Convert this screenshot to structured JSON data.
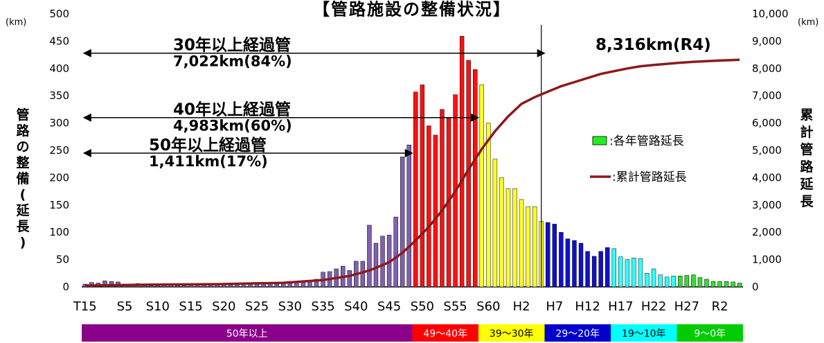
{
  "chart_data": {
    "type": "bar",
    "title": "【管路施設の整備状況】",
    "ylabel": "管路の整備(延長)",
    "y2label": "累計管路延長",
    "y_unit": "(km)",
    "y2_unit": "(km)",
    "ylim": [
      0,
      500
    ],
    "y2lim": [
      0,
      10000
    ],
    "yticks": [
      "0",
      "50",
      "100",
      "150",
      "200",
      "250",
      "300",
      "350",
      "400",
      "450",
      "500"
    ],
    "y2ticks": [
      "0",
      "1,000",
      "2,000",
      "3,000",
      "4,000",
      "5,000",
      "6,000",
      "7,000",
      "8,000",
      "9,000",
      "10,000"
    ],
    "x_tick_labels": [
      {
        "label": "T15",
        "index": 0
      },
      {
        "label": "S5",
        "index": 6
      },
      {
        "label": "S10",
        "index": 11
      },
      {
        "label": "S15",
        "index": 16
      },
      {
        "label": "S20",
        "index": 21
      },
      {
        "label": "S25",
        "index": 26
      },
      {
        "label": "S30",
        "index": 31
      },
      {
        "label": "S35",
        "index": 36
      },
      {
        "label": "S40",
        "index": 41
      },
      {
        "label": "S45",
        "index": 46
      },
      {
        "label": "S50",
        "index": 51
      },
      {
        "label": "S55",
        "index": 56
      },
      {
        "label": "S60",
        "index": 61
      },
      {
        "label": "H2",
        "index": 66
      },
      {
        "label": "H7",
        "index": 71
      },
      {
        "label": "H12",
        "index": 76
      },
      {
        "label": "H17",
        "index": 81
      },
      {
        "label": "H22",
        "index": 86
      },
      {
        "label": "H27",
        "index": 91
      },
      {
        "label": "R2",
        "index": 96
      }
    ],
    "bar_count": 100,
    "values": [
      5,
      8,
      7,
      11,
      10,
      9,
      3,
      2,
      6,
      2,
      2,
      2,
      3,
      3,
      2,
      2,
      3,
      3,
      3,
      3,
      4,
      4,
      4,
      3,
      3,
      5,
      5,
      6,
      6,
      5,
      7,
      10,
      8,
      10,
      12,
      14,
      27,
      28,
      33,
      38,
      30,
      47,
      47,
      113,
      80,
      93,
      95,
      128,
      238,
      260,
      357,
      370,
      295,
      278,
      325,
      310,
      352,
      459,
      415,
      398,
      370,
      300,
      234,
      200,
      180,
      180,
      160,
      147,
      147,
      120,
      118,
      115,
      100,
      88,
      85,
      80,
      65,
      56,
      65,
      72,
      70,
      55,
      50,
      53,
      52,
      25,
      33,
      22,
      18,
      20,
      20,
      21,
      22,
      17,
      14,
      10,
      10,
      10,
      9,
      7
    ],
    "series": [
      {
        "name": "各年管路延長",
        "type": "bar",
        "color": "#22ee22"
      },
      {
        "name": "累計管路延長",
        "type": "line",
        "color": "#8b1a1a"
      }
    ],
    "cumulative_points": [
      [
        0,
        50
      ],
      [
        10,
        80
      ],
      [
        20,
        100
      ],
      [
        30,
        150
      ],
      [
        36,
        250
      ],
      [
        40,
        400
      ],
      [
        43,
        600
      ],
      [
        46,
        900
      ],
      [
        48,
        1250
      ],
      [
        50,
        1700
      ],
      [
        52,
        2200
      ],
      [
        54,
        2800
      ],
      [
        56,
        3500
      ],
      [
        58,
        4300
      ],
      [
        60,
        5050
      ],
      [
        62,
        5700
      ],
      [
        64,
        6250
      ],
      [
        66,
        6700
      ],
      [
        68,
        6950
      ],
      [
        70,
        7150
      ],
      [
        72,
        7350
      ],
      [
        74,
        7500
      ],
      [
        76,
        7650
      ],
      [
        78,
        7800
      ],
      [
        80,
        7900
      ],
      [
        82,
        8000
      ],
      [
        84,
        8080
      ],
      [
        86,
        8130
      ],
      [
        88,
        8170
      ],
      [
        90,
        8210
      ],
      [
        92,
        8240
      ],
      [
        94,
        8270
      ],
      [
        96,
        8290
      ],
      [
        98,
        8310
      ],
      [
        99,
        8316
      ]
    ],
    "color_bands": [
      {
        "label": "50年以上",
        "from": 0,
        "to": 50,
        "color": "#8b008b",
        "text_color": "#ffffff"
      },
      {
        "label": "49〜40年",
        "from": 50,
        "to": 60,
        "color": "#ff0000",
        "text_color": "#ffffff"
      },
      {
        "label": "39〜30年",
        "from": 60,
        "to": 70,
        "color": "#ffff00",
        "text_color": "#000000"
      },
      {
        "label": "29〜20年",
        "from": 70,
        "to": 80,
        "color": "#0000cc",
        "text_color": "#ffffff"
      },
      {
        "label": "19〜10年",
        "from": 80,
        "to": 90,
        "color": "#00ffff",
        "text_color": "#000000"
      },
      {
        "label": "9〜0年",
        "from": 90,
        "to": 100,
        "color": "#00cc00",
        "text_color": "#ffffff"
      }
    ],
    "bar_colors": [
      {
        "from": 0,
        "to": 50,
        "color": "#8060b0"
      },
      {
        "from": 50,
        "to": 60,
        "color": "#ff1010"
      },
      {
        "from": 60,
        "to": 70,
        "color": "#ffff22"
      },
      {
        "from": 70,
        "to": 80,
        "color": "#1010cc"
      },
      {
        "from": 80,
        "to": 90,
        "color": "#33ffff"
      },
      {
        "from": 90,
        "to": 100,
        "color": "#33dd33"
      }
    ],
    "annotations": [
      {
        "line1": "30年以上経過管",
        "line2": "7,022km(84%)",
        "arrow_to_index": 69,
        "y": 428
      },
      {
        "line1": "40年以上経過管",
        "line2": "4,983km(60%)",
        "arrow_to_index": 59,
        "y": 310
      },
      {
        "line1": "50年以上経過管",
        "line2": "1,411km(17%)",
        "arrow_to_index": 49,
        "y": 245
      }
    ],
    "vline_index": 69.5,
    "total_label": "8,316km(R4)"
  }
}
